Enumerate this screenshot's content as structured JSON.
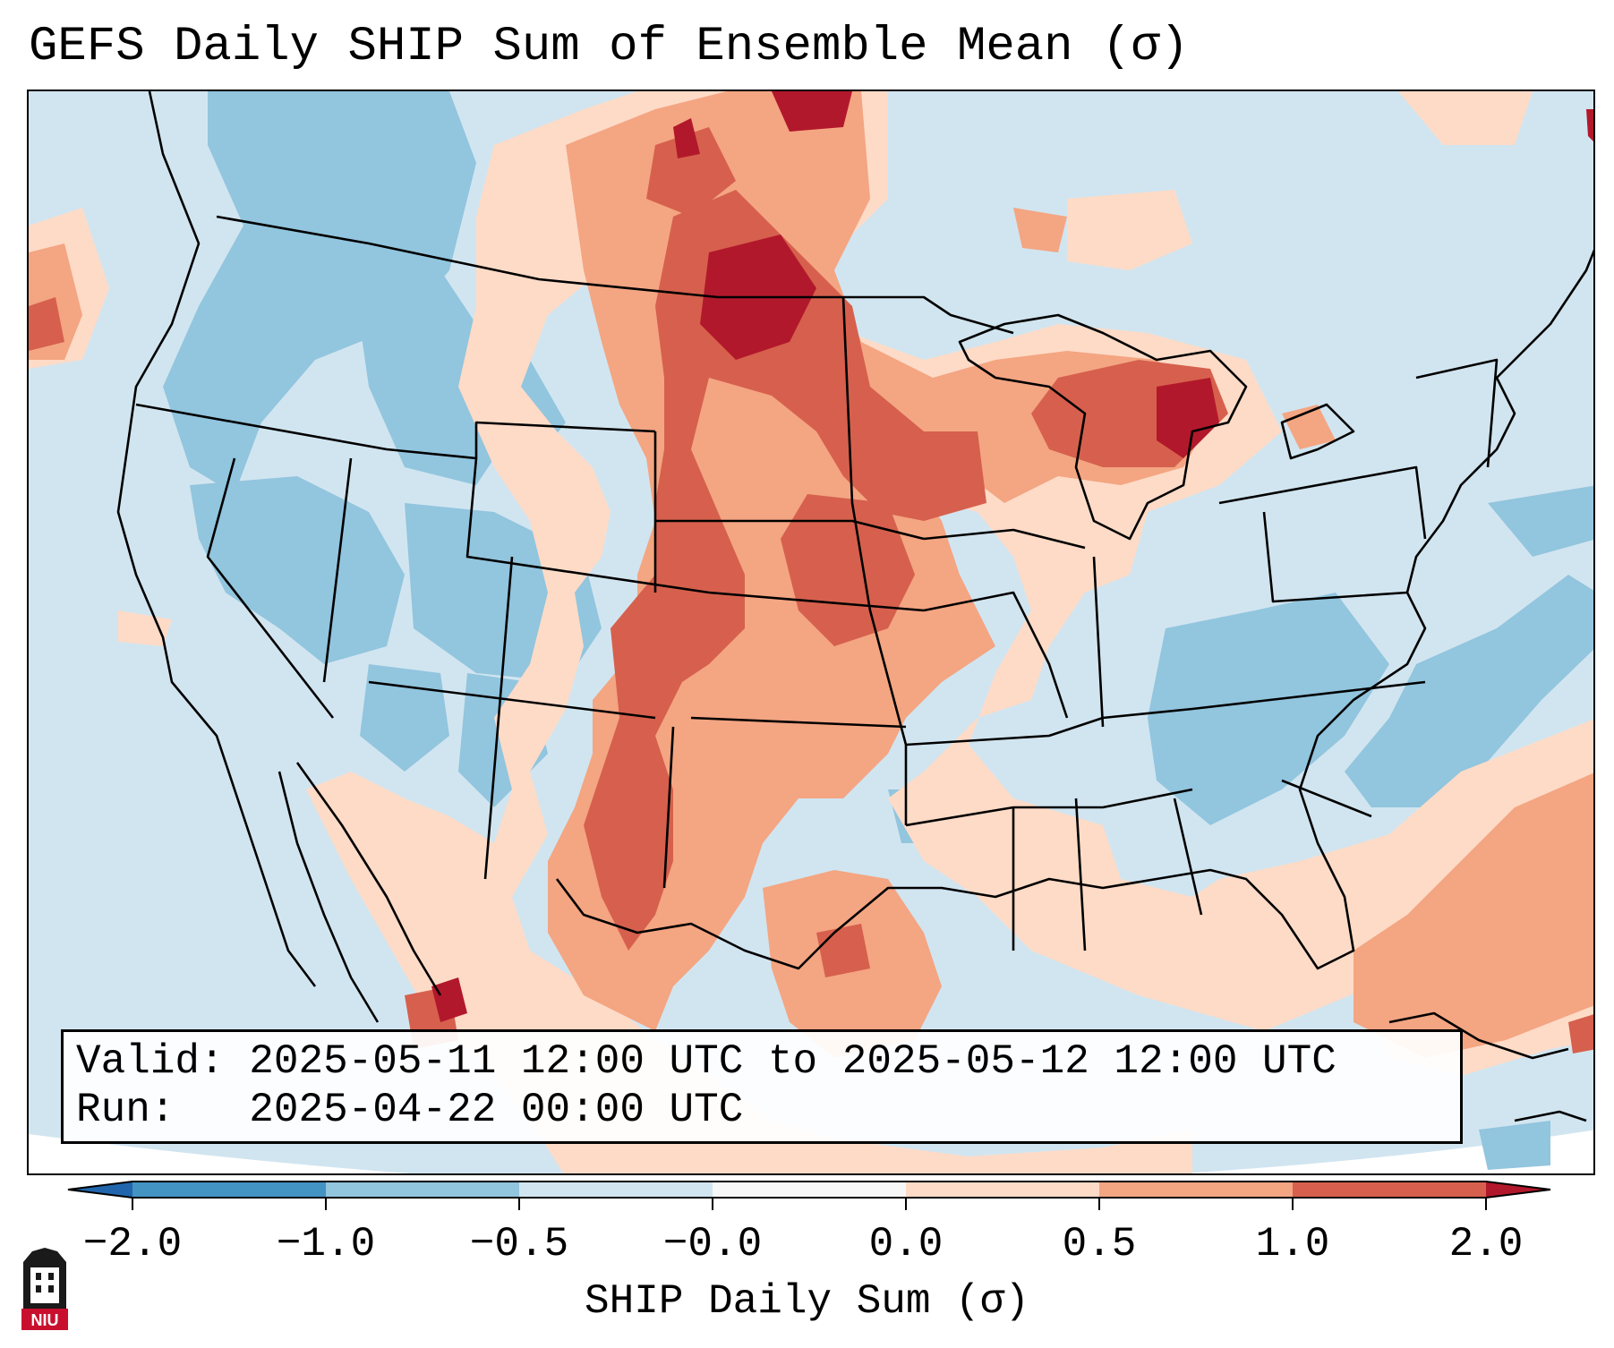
{
  "title": "GEFS Daily SHIP Sum of Ensemble Mean (σ)",
  "info": {
    "valid_label": "Valid:",
    "valid_value": "2025-05-11 12:00 UTC to 2025-05-12 12:00 UTC",
    "run_label": "Run:",
    "run_value": "2025-04-22 00:00 UTC"
  },
  "colorbar": {
    "label": "SHIP Daily Sum (σ)",
    "ticks": [
      "−2.0",
      "−1.0",
      "−0.5",
      "−0.0",
      "0.0",
      "0.5",
      "1.0",
      "2.0"
    ],
    "bin_colors": [
      "#4393c3",
      "#92c5de",
      "#d1e5f0",
      "#f7f7f7",
      "#fddbc7",
      "#f4a582",
      "#d6604d"
    ],
    "under_color": "#2166ac",
    "over_color": "#b2182b"
  },
  "logo": {
    "text": "NIU",
    "icon": "niu-university-logo-icon"
  }
}
